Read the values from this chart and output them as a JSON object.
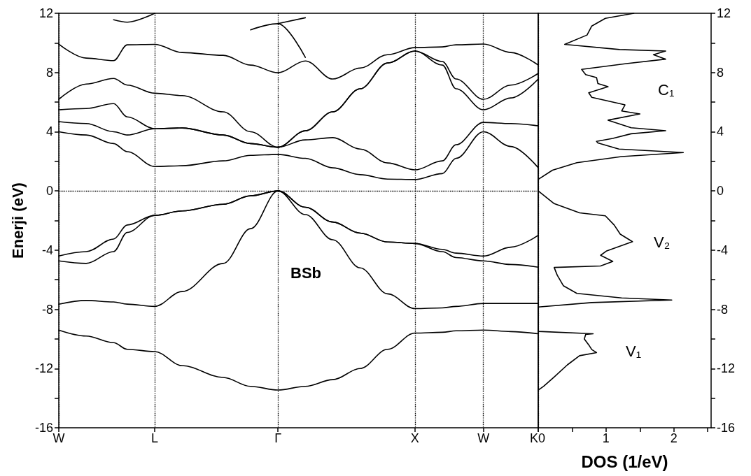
{
  "chart_data": [
    {
      "type": "line",
      "title": "BSb",
      "ylabel": "Enerji (eV)",
      "marker": "none",
      "line_style": "solid",
      "grid": "x",
      "categories": [
        "W",
        null,
        null,
        null,
        null,
        null,
        null,
        "L",
        null,
        null,
        null,
        null,
        null,
        null,
        null,
        null,
        "Γ",
        null,
        null,
        null,
        null,
        null,
        null,
        null,
        null,
        null,
        "X",
        null,
        null,
        null,
        null,
        "W",
        null,
        null,
        null,
        "K"
      ],
      "ylim": [
        -16,
        12
      ],
      "yticks": [
        -16,
        {
          "value": -14,
          "label": null
        },
        -12,
        {
          "value": -10,
          "label": null
        },
        -8,
        {
          "value": -6,
          "label": null
        },
        -4,
        {
          "value": -2,
          "label": null
        },
        0,
        {
          "value": 2,
          "label": null
        },
        4,
        {
          "value": 6,
          "label": null
        },
        8,
        {
          "value": 10,
          "label": null
        },
        12
      ],
      "ref_lines": [
        {
          "axis": "y",
          "value": 0,
          "line_style": "dotted",
          "color": "#000000"
        }
      ],
      "series": [
        {
          "color": "#000000",
          "values": [
            -9.4,
            null,
            -9.8,
            null,
            -10.25,
            -10.7,
            null,
            -10.85,
            null,
            -11.8,
            null,
            null,
            -12.6,
            null,
            -13.2,
            null,
            -13.45,
            null,
            -13.2,
            null,
            -12.75,
            null,
            -12.0,
            null,
            -10.7,
            null,
            -9.6,
            null,
            -9.55,
            -9.45,
            null,
            -9.4,
            null,
            -9.5,
            null,
            -9.65
          ]
        },
        {
          "color": "#000000",
          "values": [
            -7.65,
            null,
            -7.4,
            null,
            -7.5,
            -7.65,
            null,
            -7.8,
            null,
            -6.8,
            null,
            null,
            -4.9,
            null,
            -2.55,
            null,
            0,
            null,
            -1.6,
            null,
            -3.3,
            null,
            -5.2,
            null,
            -6.95,
            null,
            -7.95,
            null,
            -7.9,
            -7.8,
            null,
            -7.6,
            null,
            -7.6,
            null,
            -7.6
          ]
        },
        {
          "color": "#000000",
          "values": [
            -4.73,
            null,
            -4.9,
            null,
            -4.1,
            -2.8,
            null,
            -1.65,
            null,
            -1.35,
            null,
            null,
            -0.9,
            null,
            -0.33,
            null,
            0,
            null,
            -1.1,
            null,
            -2.1,
            null,
            -2.85,
            null,
            -3.45,
            null,
            -3.55,
            null,
            -4.1,
            -4.5,
            null,
            -4.73,
            null,
            -4.97,
            null,
            -5.15
          ]
        },
        {
          "color": "#000000",
          "values": [
            -4.4,
            null,
            -4.1,
            null,
            -3.25,
            -2.3,
            null,
            -1.65,
            null,
            -1.35,
            null,
            null,
            -0.9,
            null,
            -0.33,
            null,
            0,
            null,
            -1.1,
            null,
            -2.1,
            null,
            -2.85,
            null,
            -3.45,
            null,
            -3.55,
            null,
            -3.95,
            -4.2,
            null,
            -4.4,
            null,
            -3.8,
            null,
            -3.0
          ]
        },
        {
          "color": "#000000",
          "values": [
            4.0,
            null,
            3.78,
            null,
            3.2,
            2.65,
            null,
            1.65,
            null,
            1.7,
            null,
            null,
            2.03,
            null,
            2.4,
            null,
            2.47,
            null,
            2.2,
            null,
            1.56,
            null,
            1.1,
            null,
            0.8,
            null,
            0.77,
            null,
            1.17,
            2.2,
            null,
            4.0,
            null,
            3.0,
            null,
            1.56
          ]
        },
        {
          "color": "#000000",
          "values": [
            4.68,
            null,
            4.55,
            null,
            4.0,
            3.78,
            null,
            4.2,
            null,
            4.25,
            null,
            null,
            3.78,
            null,
            3.2,
            null,
            2.95,
            null,
            3.45,
            null,
            3.6,
            null,
            2.83,
            null,
            1.89,
            null,
            1.42,
            null,
            2.03,
            3.12,
            null,
            4.63,
            null,
            4.55,
            null,
            4.4
          ]
        },
        {
          "color": "#000000",
          "values": [
            5.48,
            null,
            5.57,
            null,
            5.9,
            5.0,
            null,
            4.2,
            null,
            4.25,
            null,
            null,
            3.78,
            null,
            3.2,
            null,
            2.95,
            null,
            4.06,
            null,
            5.34,
            null,
            6.9,
            null,
            8.64,
            null,
            9.45,
            null,
            8.5,
            6.9,
            null,
            5.48,
            null,
            6.28,
            null,
            7.56
          ]
        },
        {
          "color": "#000000",
          "values": [
            6.19,
            null,
            7.22,
            null,
            7.6,
            7.15,
            null,
            6.6,
            null,
            6.44,
            null,
            null,
            5.34,
            null,
            4.0,
            null,
            2.95,
            null,
            4.06,
            null,
            5.34,
            null,
            6.9,
            null,
            8.64,
            null,
            9.45,
            null,
            8.74,
            7.56,
            null,
            6.19,
            null,
            7.15,
            null,
            7.94
          ]
        },
        {
          "color": "#000000",
          "values": [
            9.92,
            null,
            8.97,
            null,
            8.8,
            9.87,
            null,
            9.9,
            null,
            9.35,
            null,
            null,
            9.16,
            null,
            8.5,
            null,
            7.98,
            null,
            8.78,
            null,
            7.56,
            null,
            8.3,
            null,
            9.2,
            null,
            9.68,
            null,
            9.73,
            9.87,
            null,
            9.92,
            null,
            9.35,
            null,
            8.5
          ]
        },
        {
          "color": "#000000",
          "values": [
            null,
            null,
            null,
            null,
            11.56,
            11.4,
            null,
            12,
            null,
            null,
            null,
            null,
            null,
            null,
            null,
            null,
            null,
            null,
            null,
            null,
            null,
            null,
            null,
            null,
            null,
            null,
            null,
            null,
            null,
            null,
            null,
            null,
            null,
            null,
            null,
            null
          ]
        },
        {
          "color": "#000000",
          "values": [
            null,
            null,
            null,
            null,
            null,
            null,
            null,
            null,
            null,
            null,
            null,
            null,
            null,
            null,
            10.88,
            null,
            11.3,
            null,
            9.02,
            null,
            null,
            null,
            null,
            null,
            null,
            null,
            null,
            null,
            null,
            null,
            null,
            null,
            null,
            null,
            null,
            null
          ]
        },
        {
          "color": "#000000",
          "values": [
            null,
            null,
            null,
            null,
            null,
            null,
            null,
            null,
            null,
            null,
            null,
            null,
            null,
            null,
            null,
            null,
            11.3,
            null,
            11.7,
            null,
            null,
            null,
            null,
            null,
            null,
            null,
            null,
            null,
            null,
            null,
            null,
            null,
            null,
            null,
            null,
            null
          ]
        }
      ]
    },
    {
      "type": "line",
      "xlabel": "DOS (1/eV)",
      "marker": "none",
      "line_style": "solid",
      "xlim": [
        0,
        2.55
      ],
      "xticks": [
        0,
        {
          "value": 0.5,
          "label": null
        },
        1,
        {
          "value": 1.5,
          "label": null
        },
        2,
        {
          "value": 2.5,
          "label": null
        }
      ],
      "ylim": [
        -16,
        12
      ],
      "yticks": [
        -16,
        {
          "value": -14,
          "label": null
        },
        -12,
        {
          "value": -10,
          "label": null
        },
        -8,
        {
          "value": -6,
          "label": null
        },
        -4,
        {
          "value": -2,
          "label": null
        },
        0,
        {
          "value": 2,
          "label": null
        },
        4,
        {
          "value": 6,
          "label": null
        },
        8,
        {
          "value": 10,
          "label": null
        },
        12
      ],
      "annotations": [
        "C₁",
        "V₂",
        "V₁"
      ],
      "series": [
        {
          "color": "#000000",
          "x": [
            0,
            0.08,
            0.235,
            0.43,
            0.61,
            0.86,
            0.79,
            0.745,
            0.68,
            0.7,
            0.81,
            0,
            0,
            0.79,
            1.97,
            1.23,
            0.57,
            0.37,
            0.28,
            0.235,
            0.92,
            1.1,
            0.92,
            1.01,
            1.39,
            1.21,
            1.12,
            0.99,
            0.61,
            0.235,
            0,
            0,
            0.21,
            0.57,
            1.23,
            2.14,
            1.19,
            0.88,
            0.86,
            1.1,
            1.37,
            1.88,
            1.37,
            1.03,
            1.5,
            1.23,
            1.28,
            1.19,
            0.79,
            0.745,
            1.03,
            0.88,
            0.86,
            0.7,
            0.64,
            1.3,
            1.88,
            1.7,
            1.88,
            1.2,
            0.39,
            0.72,
            0.79,
            0.99,
            1.41
          ],
          "values": [
            -13.46,
            -13.2,
            -12.57,
            -11.75,
            -11.13,
            -10.92,
            -10.72,
            -10.4,
            -10.0,
            -9.69,
            -9.65,
            -9.49,
            -7.84,
            -7.54,
            -7.37,
            -7.23,
            -6.92,
            -6.4,
            -5.69,
            -5.17,
            -5.07,
            -4.76,
            -4.35,
            -4.05,
            -3.43,
            -2.92,
            -2.3,
            -1.68,
            -1.48,
            -0.86,
            0,
            0.78,
            1.4,
            1.91,
            2.32,
            2.59,
            2.83,
            3.24,
            3.35,
            3.55,
            3.86,
            4.07,
            4.27,
            4.78,
            5.2,
            5.4,
            5.81,
            5.91,
            6.32,
            6.63,
            7.04,
            7.25,
            7.66,
            7.86,
            8.21,
            8.6,
            8.9,
            9.2,
            9.45,
            9.55,
            9.9,
            10.53,
            11.14,
            11.66,
            12
          ]
        }
      ]
    }
  ]
}
